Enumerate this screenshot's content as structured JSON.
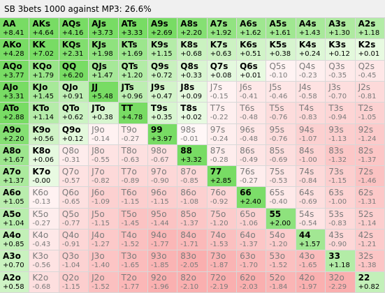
{
  "window": {
    "title": "SB 3bets 1000 against MP3: 26.6%"
  },
  "cells": [
    [
      [
        "AA",
        "+8.41"
      ],
      [
        "AKs",
        "+4.64"
      ],
      [
        "AQs",
        "+4.16"
      ],
      [
        "AJs",
        "+3.73"
      ],
      [
        "ATs",
        "+3.33"
      ],
      [
        "A9s",
        "+2.69"
      ],
      [
        "A8s",
        "+2.20"
      ],
      [
        "A7s",
        "+1.92"
      ],
      [
        "A6s",
        "+1.62"
      ],
      [
        "A5s",
        "+1.61"
      ],
      [
        "A4s",
        "+1.43"
      ],
      [
        "A3s",
        "+1.30"
      ],
      [
        "A2s",
        "+1.18"
      ]
    ],
    [
      [
        "AKo",
        "+4.28"
      ],
      [
        "KK",
        "+7.02"
      ],
      [
        "KQs",
        "+2.31"
      ],
      [
        "KJs",
        "+1.98"
      ],
      [
        "KTs",
        "+1.69"
      ],
      [
        "K9s",
        "+1.15"
      ],
      [
        "K8s",
        "+0.68"
      ],
      [
        "K7s",
        "+0.63"
      ],
      [
        "K6s",
        "+0.51"
      ],
      [
        "K5s",
        "+0.38"
      ],
      [
        "K4s",
        "+0.24"
      ],
      [
        "K3s",
        "+0.12"
      ],
      [
        "K2s",
        "+0.01"
      ]
    ],
    [
      [
        "AQo",
        "+3.77"
      ],
      [
        "KQo",
        "+1.79"
      ],
      [
        "QQ",
        "+6.20"
      ],
      [
        "QJs",
        "+1.47"
      ],
      [
        "QTs",
        "+1.20"
      ],
      [
        "Q9s",
        "+0.72"
      ],
      [
        "Q8s",
        "+0.33"
      ],
      [
        "Q7s",
        "+0.08"
      ],
      [
        "Q6s",
        "+0.01"
      ],
      [
        "Q5s",
        "-0.10"
      ],
      [
        "Q4s",
        "-0.23"
      ],
      [
        "Q3s",
        "-0.35"
      ],
      [
        "Q2s",
        "-0.45"
      ]
    ],
    [
      [
        "AJo",
        "+3.31"
      ],
      [
        "KJo",
        "+1.45"
      ],
      [
        "QJo",
        "+0.91"
      ],
      [
        "JJ",
        "+5.48"
      ],
      [
        "JTs",
        "+0.96"
      ],
      [
        "J9s",
        "+0.47"
      ],
      [
        "J8s",
        "+0.09"
      ],
      [
        "J7s",
        "-0.15"
      ],
      [
        "J6s",
        "-0.41"
      ],
      [
        "J5s",
        "-0.46"
      ],
      [
        "J4s",
        "-0.58"
      ],
      [
        "J3s",
        "-0.70"
      ],
      [
        "J2s",
        "-0.81"
      ]
    ],
    [
      [
        "ATo",
        "+2.88"
      ],
      [
        "KTo",
        "+1.14"
      ],
      [
        "QTo",
        "+0.62"
      ],
      [
        "JTo",
        "+0.38"
      ],
      [
        "TT",
        "+4.78"
      ],
      [
        "T9s",
        "+0.35"
      ],
      [
        "T8s",
        "+0.02"
      ],
      [
        "T7s",
        "-0.22"
      ],
      [
        "T6s",
        "-0.48"
      ],
      [
        "T5s",
        "-0.76"
      ],
      [
        "T4s",
        "-0.83"
      ],
      [
        "T3s",
        "-0.94"
      ],
      [
        "T2s",
        "-1.05"
      ]
    ],
    [
      [
        "A9o",
        "+2.20"
      ],
      [
        "K9o",
        "+0.56"
      ],
      [
        "Q9o",
        "+0.12"
      ],
      [
        "J9o",
        "-0.14"
      ],
      [
        "T9o",
        "-0.27"
      ],
      [
        "99",
        "+3.97"
      ],
      [
        "98s",
        "-0.01"
      ],
      [
        "97s",
        "-0.24"
      ],
      [
        "96s",
        "-0.48"
      ],
      [
        "95s",
        "-0.76"
      ],
      [
        "94s",
        "-1.07"
      ],
      [
        "93s",
        "-1.13"
      ],
      [
        "92s",
        "-1.24"
      ]
    ],
    [
      [
        "A8o",
        "+1.67"
      ],
      [
        "K8o",
        "+0.06"
      ],
      [
        "Q8o",
        "-0.31"
      ],
      [
        "J8o",
        "-0.55"
      ],
      [
        "T8o",
        "-0.63"
      ],
      [
        "98o",
        "-0.67"
      ],
      [
        "88",
        "+3.32"
      ],
      [
        "87s",
        "-0.28"
      ],
      [
        "86s",
        "-0.49"
      ],
      [
        "85s",
        "-0.69"
      ],
      [
        "84s",
        "-1.00"
      ],
      [
        "83s",
        "-1.32"
      ],
      [
        "82s",
        "-1.37"
      ]
    ],
    [
      [
        "A7o",
        "+1.37"
      ],
      [
        "K7o",
        "-0.00"
      ],
      [
        "Q7o",
        "-0.57"
      ],
      [
        "J7o",
        "-0.82"
      ],
      [
        "T7o",
        "-0.89"
      ],
      [
        "97o",
        "-0.90"
      ],
      [
        "87o",
        "-0.85"
      ],
      [
        "77",
        "+2.85"
      ],
      [
        "76s",
        "-0.27"
      ],
      [
        "75s",
        "-0.53"
      ],
      [
        "74s",
        "-0.84"
      ],
      [
        "73s",
        "-1.15"
      ],
      [
        "72s",
        "-1.46"
      ]
    ],
    [
      [
        "A6o",
        "+1.05"
      ],
      [
        "K6o",
        "-0.13"
      ],
      [
        "Q6o",
        "-0.65"
      ],
      [
        "J6o",
        "-1.09"
      ],
      [
        "T6o",
        "-1.15"
      ],
      [
        "96o",
        "-1.15"
      ],
      [
        "86o",
        "-1.08"
      ],
      [
        "76o",
        "-0.92"
      ],
      [
        "66",
        "+2.40"
      ],
      [
        "65s",
        "-0.40"
      ],
      [
        "64s",
        "-0.69"
      ],
      [
        "63s",
        "-1.00"
      ],
      [
        "62s",
        "-1.31"
      ]
    ],
    [
      [
        "A5o",
        "+1.04"
      ],
      [
        "K5o",
        "-0.27"
      ],
      [
        "Q5o",
        "-0.77"
      ],
      [
        "J5o",
        "-1.15"
      ],
      [
        "T5o",
        "-1.45"
      ],
      [
        "95o",
        "-1.44"
      ],
      [
        "85o",
        "-1.37"
      ],
      [
        "75o",
        "-1.20"
      ],
      [
        "65o",
        "-1.06"
      ],
      [
        "55",
        "+2.00"
      ],
      [
        "54s",
        "-0.54"
      ],
      [
        "53s",
        "-0.83"
      ],
      [
        "52s",
        "-1.14"
      ]
    ],
    [
      [
        "A4o",
        "+0.85"
      ],
      [
        "K4o",
        "-0.43"
      ],
      [
        "Q4o",
        "-0.91"
      ],
      [
        "J4o",
        "-1.27"
      ],
      [
        "T4o",
        "-1.52"
      ],
      [
        "94o",
        "-1.77"
      ],
      [
        "84o",
        "-1.71"
      ],
      [
        "74o",
        "-1.53"
      ],
      [
        "64o",
        "-1.37"
      ],
      [
        "54o",
        "-1.20"
      ],
      [
        "44",
        "+1.57"
      ],
      [
        "43s",
        "-0.90"
      ],
      [
        "42s",
        "-1.21"
      ]
    ],
    [
      [
        "A3o",
        "+0.70"
      ],
      [
        "K3o",
        "-0.56"
      ],
      [
        "Q3o",
        "-1.04"
      ],
      [
        "J3o",
        "-1.40"
      ],
      [
        "T3o",
        "-1.65"
      ],
      [
        "93o",
        "-1.85"
      ],
      [
        "83o",
        "-2.05"
      ],
      [
        "73o",
        "-1.87"
      ],
      [
        "63o",
        "-1.70"
      ],
      [
        "53o",
        "-1.52"
      ],
      [
        "43o",
        "-1.65"
      ],
      [
        "33",
        "+1.18"
      ],
      [
        "32s",
        "-1.38"
      ]
    ],
    [
      [
        "A2o",
        "+0.58"
      ],
      [
        "K2o",
        "-0.68"
      ],
      [
        "Q2o",
        "-1.15"
      ],
      [
        "J2o",
        "-1.52"
      ],
      [
        "T2o",
        "-1.77"
      ],
      [
        "92o",
        "-1.96"
      ],
      [
        "82o",
        "-2.10"
      ],
      [
        "72o",
        "-2.19"
      ],
      [
        "62o",
        "-2.03"
      ],
      [
        "52o",
        "-1.84"
      ],
      [
        "42o",
        "-1.97"
      ],
      [
        "32o",
        "-2.29"
      ],
      [
        "22",
        "+0.82"
      ]
    ]
  ]
}
